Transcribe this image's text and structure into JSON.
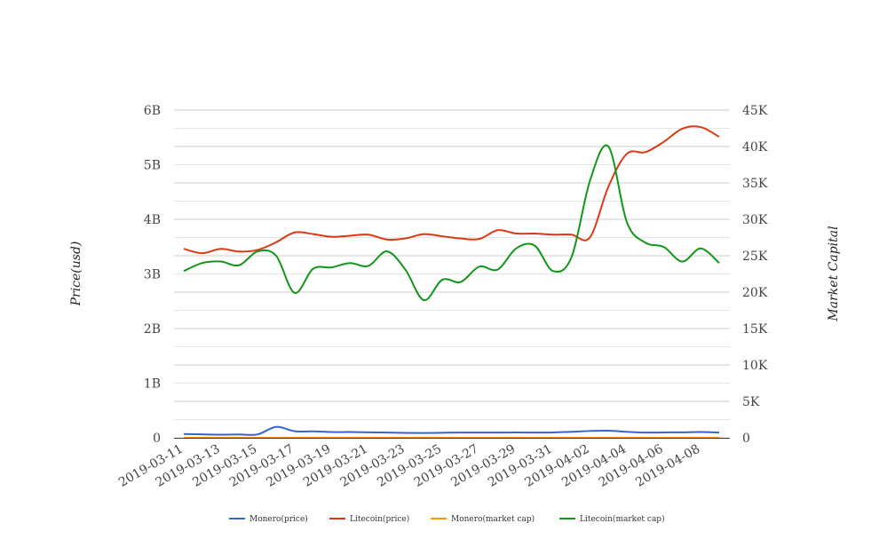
{
  "chart_data": {
    "type": "line",
    "x": [
      "2019-03-11",
      "2019-03-12",
      "2019-03-13",
      "2019-03-14",
      "2019-03-15",
      "2019-03-16",
      "2019-03-17",
      "2019-03-18",
      "2019-03-19",
      "2019-03-20",
      "2019-03-21",
      "2019-03-22",
      "2019-03-23",
      "2019-03-24",
      "2019-03-25",
      "2019-03-26",
      "2019-03-27",
      "2019-03-28",
      "2019-03-29",
      "2019-03-30",
      "2019-03-31",
      "2019-04-01",
      "2019-04-02",
      "2019-04-03",
      "2019-04-04",
      "2019-04-05",
      "2019-04-06",
      "2019-04-07",
      "2019-04-08",
      "2019-04-09"
    ],
    "x_tick_labels": [
      "2019-03-11",
      "2019-03-13",
      "2019-03-15",
      "2019-03-17",
      "2019-03-19",
      "2019-03-21",
      "2019-03-23",
      "2019-03-25",
      "2019-03-27",
      "2019-03-29",
      "2019-03-31",
      "2019-04-02",
      "2019-04-04",
      "2019-04-06",
      "2019-04-08"
    ],
    "ylabel_left": "Price(usd)",
    "ylabel_right": "Market Capital",
    "ylim_left": [
      0,
      6000000000
    ],
    "ylim_right": [
      0,
      45000
    ],
    "left_ticks": [
      "0",
      "1B",
      "2B",
      "3B",
      "4B",
      "5B",
      "6B"
    ],
    "right_ticks": [
      "0",
      "5K",
      "10K",
      "15K",
      "20K",
      "25K",
      "30K",
      "35K",
      "40K",
      "45K"
    ],
    "grid": true,
    "legend_position": "bottom",
    "series": [
      {
        "name": "Monero(price)",
        "color": "#3366cc",
        "axis": "left",
        "values": [
          70000000,
          62000000,
          57000000,
          60000000,
          62000000,
          200000000,
          120000000,
          118000000,
          105000000,
          105000000,
          100000000,
          95000000,
          90000000,
          88000000,
          92000000,
          95000000,
          95000000,
          96000000,
          97000000,
          95000000,
          98000000,
          110000000,
          125000000,
          130000000,
          110000000,
          95000000,
          98000000,
          100000000,
          105000000,
          95000000
        ]
      },
      {
        "name": "Litecoin(price)",
        "color": "#dc3912",
        "axis": "left",
        "values": [
          3460000000,
          3380000000,
          3460000000,
          3410000000,
          3440000000,
          3580000000,
          3760000000,
          3730000000,
          3680000000,
          3700000000,
          3720000000,
          3630000000,
          3650000000,
          3730000000,
          3690000000,
          3650000000,
          3640000000,
          3800000000,
          3740000000,
          3740000000,
          3720000000,
          3720000000,
          3670000000,
          4600000000,
          5200000000,
          5230000000,
          5420000000,
          5660000000,
          5690000000,
          5510000000
        ]
      },
      {
        "name": "Monero(market cap)",
        "color": "#ff9900",
        "axis": "right",
        "values": [
          0,
          0,
          0,
          0,
          0,
          0,
          0,
          0,
          0,
          0,
          0,
          0,
          0,
          0,
          0,
          0,
          0,
          0,
          0,
          0,
          0,
          0,
          0,
          0,
          0,
          0,
          0,
          0,
          0,
          0
        ]
      },
      {
        "name": "Litecoin(market cap)",
        "color": "#109618",
        "axis": "right",
        "values": [
          22900,
          24000,
          24200,
          23700,
          25600,
          25000,
          19900,
          23200,
          23400,
          24000,
          23600,
          25600,
          23100,
          18900,
          21700,
          21400,
          23500,
          23100,
          26000,
          26400,
          22900,
          24800,
          35300,
          40000,
          29600,
          26800,
          26200,
          24200,
          26000,
          24000
        ]
      }
    ]
  }
}
